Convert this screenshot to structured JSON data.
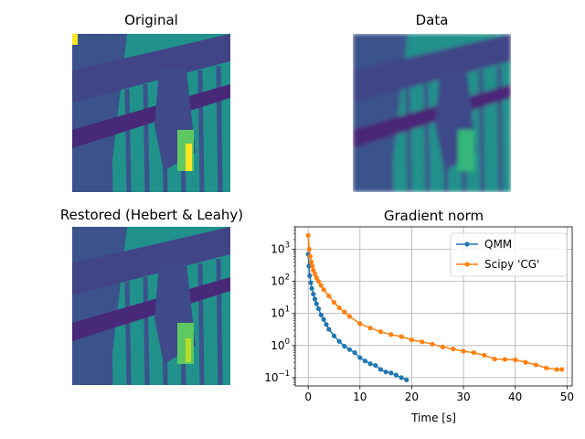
{
  "panels": {
    "original": {
      "title": "Original"
    },
    "data": {
      "title": "Data"
    },
    "restored": {
      "title": "Restored (Hebert & Leahy)"
    }
  },
  "colors": {
    "viridis_dark": "#440154",
    "viridis_purple": "#3b528b",
    "viridis_teal": "#21918c",
    "viridis_green": "#5ec962",
    "viridis_yellow": "#fde725",
    "qmm": "#1f77b4",
    "cg": "#ff7f0e"
  },
  "chart_data": {
    "type": "line",
    "title": "Gradient norm",
    "xlabel": "Time [s]",
    "ylabel": "",
    "xlim": [
      -2.5,
      51
    ],
    "ylim": [
      0.055,
      5000
    ],
    "yscale": "log",
    "xticks": [
      0,
      10,
      20,
      30,
      40,
      50
    ],
    "xtick_labels": [
      "0",
      "10",
      "20",
      "30",
      "40",
      "50"
    ],
    "yticks": [
      0.1,
      1,
      10,
      100,
      1000
    ],
    "ytick_labels": [
      {
        "base": "10",
        "exp": "−1"
      },
      {
        "base": "10",
        "exp": "0"
      },
      {
        "base": "10",
        "exp": "1"
      },
      {
        "base": "10",
        "exp": "2"
      },
      {
        "base": "10",
        "exp": "3"
      }
    ],
    "grid": true,
    "legend": "top-right",
    "series": [
      {
        "name": "QMM",
        "color": "#1f77b4",
        "marker": "circle",
        "x": [
          0,
          0.15,
          0.3,
          0.5,
          0.7,
          1,
          1.3,
          1.6,
          2,
          2.5,
          3,
          3.5,
          4,
          5,
          6,
          7,
          8,
          9,
          10,
          11,
          12,
          13,
          14,
          15,
          16,
          17,
          18,
          19
        ],
        "y": [
          700,
          300,
          150,
          90,
          60,
          40,
          28,
          20,
          14,
          9,
          6.5,
          4.5,
          3.2,
          2,
          1.35,
          0.95,
          0.75,
          0.6,
          0.42,
          0.33,
          0.27,
          0.24,
          0.18,
          0.15,
          0.14,
          0.12,
          0.1,
          0.085
        ]
      },
      {
        "name": "Scipy 'CG'",
        "color": "#ff7f0e",
        "marker": "circle",
        "x": [
          0,
          0.2,
          0.4,
          0.6,
          0.8,
          1,
          1.3,
          1.6,
          2,
          2.5,
          3,
          4,
          5,
          6,
          7,
          8,
          10,
          12,
          14,
          16,
          18,
          20,
          22,
          24,
          26,
          28,
          30,
          32,
          34,
          36,
          38,
          40,
          42,
          44,
          46,
          48,
          49
        ],
        "y": [
          2700,
          1000,
          600,
          400,
          300,
          220,
          170,
          130,
          100,
          75,
          55,
          35,
          22,
          15,
          11,
          8,
          4.8,
          3.5,
          2.7,
          2.2,
          1.9,
          1.5,
          1.3,
          1.1,
          0.9,
          0.78,
          0.66,
          0.6,
          0.5,
          0.38,
          0.37,
          0.36,
          0.3,
          0.25,
          0.2,
          0.18,
          0.18
        ]
      }
    ]
  }
}
